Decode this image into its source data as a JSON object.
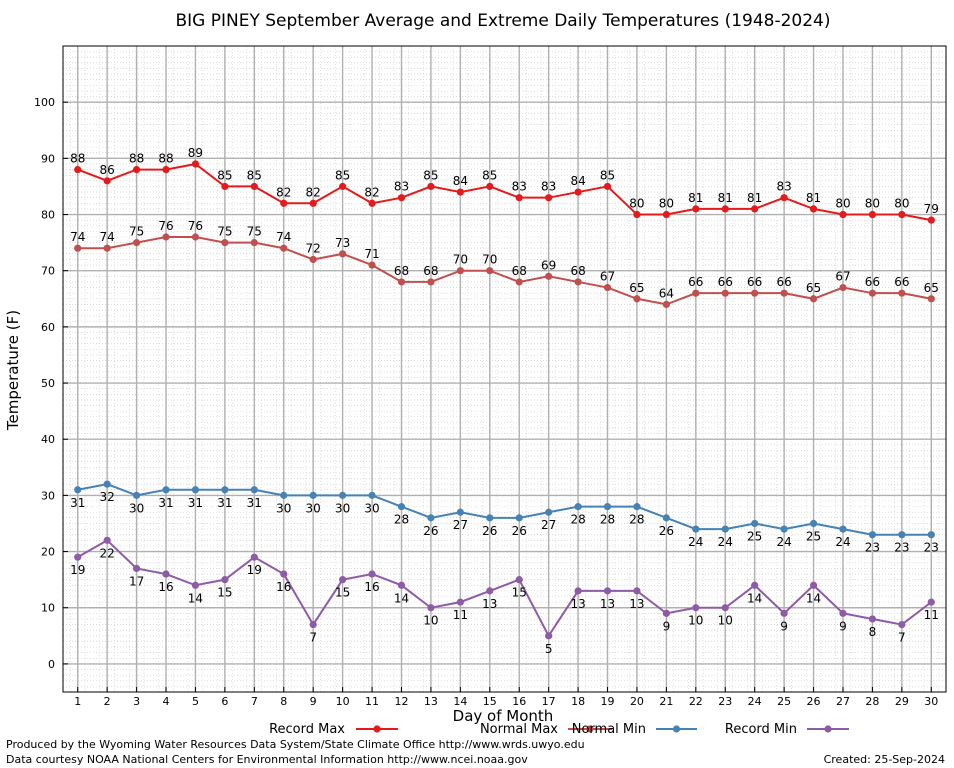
{
  "chart_data": {
    "type": "line",
    "title": "BIG PINEY September Average and Extreme Daily Temperatures (1948-2024)",
    "xlabel": "Day of Month",
    "ylabel": "Temperature (F)",
    "x": [
      1,
      2,
      3,
      4,
      5,
      6,
      7,
      8,
      9,
      10,
      11,
      12,
      13,
      14,
      15,
      16,
      17,
      18,
      19,
      20,
      21,
      22,
      23,
      24,
      25,
      26,
      27,
      28,
      29,
      30
    ],
    "xlim": [
      0.5,
      30.5
    ],
    "ylim": [
      -5,
      110
    ],
    "yticks": [
      0,
      10,
      20,
      30,
      40,
      50,
      60,
      70,
      80,
      90,
      100
    ],
    "grid": true,
    "legend_position": "bottom",
    "series": [
      {
        "name": "Record Max",
        "color": "#e41a1c",
        "label_position": "above",
        "values": [
          88,
          86,
          88,
          88,
          89,
          85,
          85,
          82,
          82,
          85,
          82,
          83,
          85,
          84,
          85,
          83,
          83,
          84,
          85,
          80,
          80,
          81,
          81,
          81,
          83,
          81,
          80,
          80,
          80,
          79
        ]
      },
      {
        "name": "Normal Max",
        "color": "#c0504d",
        "label_position": "above",
        "values": [
          74,
          74,
          75,
          76,
          76,
          75,
          75,
          74,
          72,
          73,
          71,
          68,
          68,
          70,
          70,
          68,
          69,
          68,
          67,
          65,
          64,
          66,
          66,
          66,
          66,
          65,
          67,
          66,
          66,
          65
        ]
      },
      {
        "name": "Normal Min",
        "color": "#4682b4",
        "label_position": "below",
        "values": [
          31,
          32,
          30,
          31,
          31,
          31,
          31,
          30,
          30,
          30,
          30,
          28,
          26,
          27,
          26,
          26,
          27,
          28,
          28,
          28,
          26,
          24,
          24,
          25,
          24,
          25,
          24,
          23,
          23,
          23
        ]
      },
      {
        "name": "Record Min",
        "color": "#8e5ba6",
        "label_position": "below",
        "values": [
          19,
          22,
          17,
          16,
          14,
          15,
          19,
          16,
          7,
          15,
          16,
          14,
          10,
          11,
          13,
          15,
          5,
          13,
          13,
          13,
          9,
          10,
          10,
          14,
          9,
          14,
          9,
          8,
          7,
          11
        ]
      }
    ]
  },
  "footer": {
    "produced_by": "Produced by the Wyoming Water Resources Data System/State Climate Office http://www.wrds.uwyo.edu",
    "data_courtesy": "Data courtesy NOAA National Centers for Environmental Information http://www.ncei.noaa.gov",
    "created": "Created:  25-Sep-2024"
  }
}
